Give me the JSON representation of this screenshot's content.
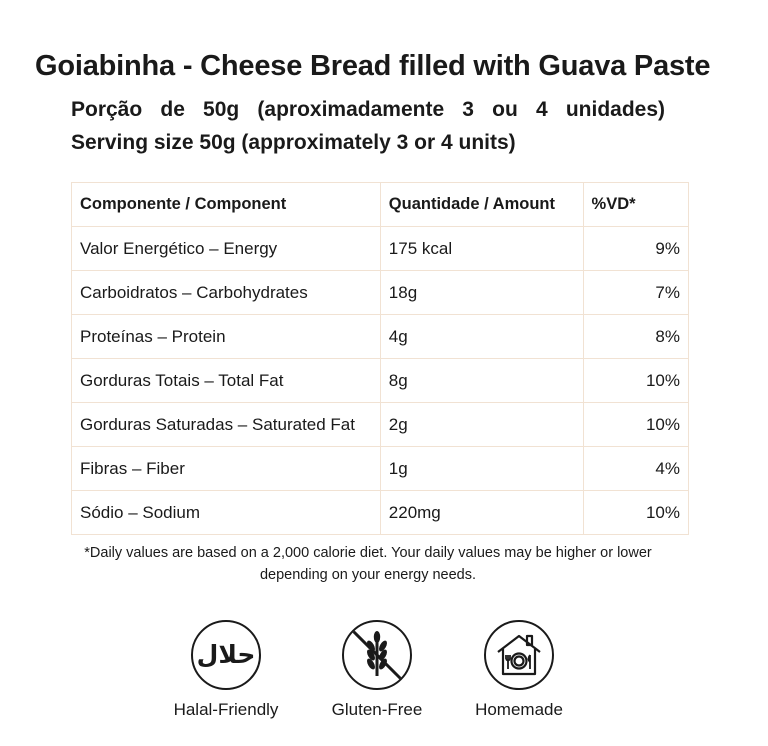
{
  "header": {
    "title": "Goiabinha - Cheese Bread filled with Guava Paste",
    "serving_pt": "Porção de 50g (aproximadamente 3 ou 4 unidades)",
    "serving_en": "Serving size 50g (approximately 3 or 4 units)"
  },
  "table": {
    "headers": {
      "component": "Componente / Component",
      "amount": "Quantidade / Amount",
      "dv": "%VD*"
    },
    "rows": [
      {
        "component": "Valor Energético – Energy",
        "amount": "175 kcal",
        "dv": "9%"
      },
      {
        "component": "Carboidratos – Carbohydrates",
        "amount": "18g",
        "dv": "7%"
      },
      {
        "component": "Proteínas – Protein",
        "amount": "4g",
        "dv": "8%"
      },
      {
        "component": "Gorduras Totais – Total Fat",
        "amount": "8g",
        "dv": "10%"
      },
      {
        "component": "Gorduras Saturadas – Saturated Fat",
        "amount": "2g",
        "dv": "10%"
      },
      {
        "component": "Fibras – Fiber",
        "amount": "1g",
        "dv": "4%"
      },
      {
        "component": "Sódio – Sodium",
        "amount": "220mg",
        "dv": "10%"
      }
    ]
  },
  "footnote": "*Daily values are based on a 2,000 calorie diet. Your daily values may be higher or lower depending on your energy needs.",
  "badges": [
    {
      "icon": "halal-icon",
      "label": "Halal-Friendly",
      "symbol": "حلال"
    },
    {
      "icon": "gluten-free-icon",
      "label": "Gluten-Free"
    },
    {
      "icon": "homemade-icon",
      "label": "Homemade"
    }
  ]
}
